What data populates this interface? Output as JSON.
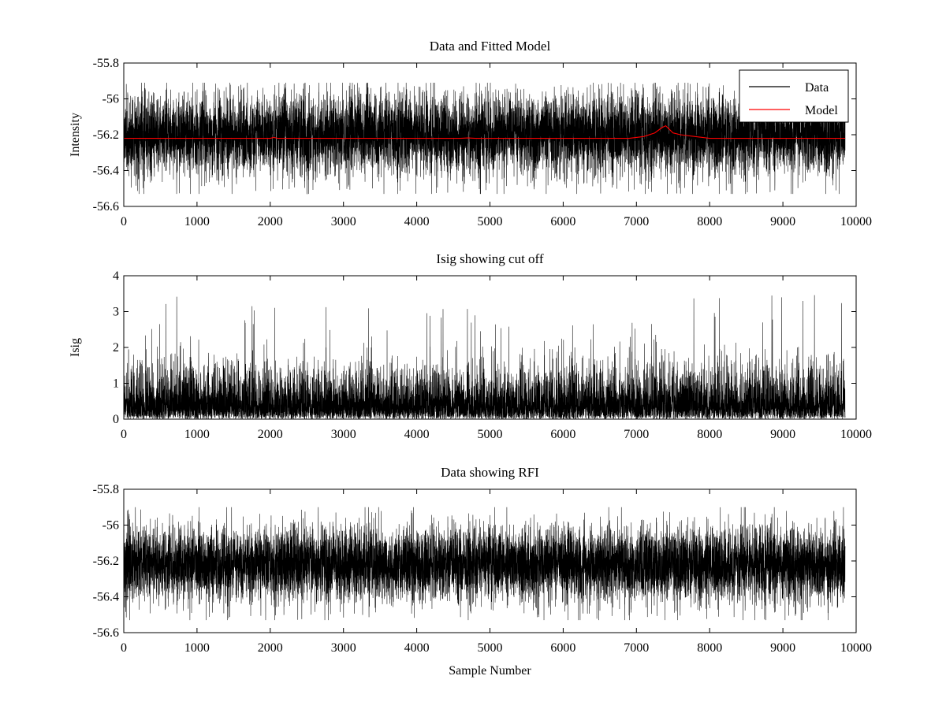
{
  "chart_data": [
    {
      "type": "line",
      "title": "Data and Fitted Model",
      "xlabel": "",
      "ylabel": "Intensity",
      "xlim": [
        0,
        10000
      ],
      "ylim": [
        -56.6,
        -55.8
      ],
      "xticks": [
        0,
        1000,
        2000,
        3000,
        4000,
        5000,
        6000,
        7000,
        8000,
        9000,
        10000
      ],
      "yticks": [
        -56.6,
        -56.4,
        -56.2,
        -56,
        -55.8
      ],
      "xtick_labels": [
        "0",
        "1000",
        "2000",
        "3000",
        "4000",
        "5000",
        "6000",
        "7000",
        "8000",
        "9000",
        "10000"
      ],
      "ytick_labels": [
        "-56.6",
        "-56.4",
        "-56.2",
        "-56",
        "-55.8"
      ],
      "grid": false,
      "legend": {
        "placement": "top-right",
        "entries": [
          {
            "name": "Data",
            "color": "#000000"
          },
          {
            "name": "Model",
            "color": "#ff0000"
          }
        ]
      },
      "series": [
        {
          "name": "Data",
          "color": "#000000",
          "kind": "noise",
          "n_points": 9850,
          "x_start": 0,
          "x_end": 9850,
          "mean": -56.2,
          "typical_range": [
            -56.35,
            -56.05
          ],
          "min": -56.53,
          "max": -55.91
        },
        {
          "name": "Model",
          "color": "#ff0000",
          "x": [
            0,
            2000,
            2050,
            2100,
            4600,
            4700,
            4800,
            6900,
            7100,
            7250,
            7350,
            7400,
            7450,
            7500,
            7600,
            7800,
            8000,
            9850
          ],
          "y": [
            -56.22,
            -56.22,
            -56.215,
            -56.22,
            -56.22,
            -56.218,
            -56.22,
            -56.22,
            -56.21,
            -56.19,
            -56.16,
            -56.15,
            -56.17,
            -56.19,
            -56.2,
            -56.21,
            -56.22,
            -56.22
          ]
        }
      ]
    },
    {
      "type": "line",
      "title": "Isig showing cut off",
      "xlabel": "",
      "ylabel": "Isig",
      "xlim": [
        0,
        10000
      ],
      "ylim": [
        0,
        4
      ],
      "xticks": [
        0,
        1000,
        2000,
        3000,
        4000,
        5000,
        6000,
        7000,
        8000,
        9000,
        10000
      ],
      "yticks": [
        0,
        1,
        2,
        3,
        4
      ],
      "xtick_labels": [
        "0",
        "1000",
        "2000",
        "3000",
        "4000",
        "5000",
        "6000",
        "7000",
        "8000",
        "9000",
        "10000"
      ],
      "ytick_labels": [
        "0",
        "1",
        "2",
        "3",
        "4"
      ],
      "grid": false,
      "series": [
        {
          "color": "#000000",
          "kind": "noise",
          "n_points": 9850,
          "x_start": 0,
          "x_end": 9850,
          "mean": 0.8,
          "typical_range": [
            0.05,
            1.7
          ],
          "min": 0.0,
          "max": 3.5
        }
      ]
    },
    {
      "type": "line",
      "title": "Data showing RFI",
      "xlabel": "Sample Number",
      "ylabel": "",
      "xlim": [
        0,
        10000
      ],
      "ylim": [
        -56.6,
        -55.8
      ],
      "xticks": [
        0,
        1000,
        2000,
        3000,
        4000,
        5000,
        6000,
        7000,
        8000,
        9000,
        10000
      ],
      "yticks": [
        -56.6,
        -56.4,
        -56.2,
        -56,
        -55.8
      ],
      "xtick_labels": [
        "0",
        "1000",
        "2000",
        "3000",
        "4000",
        "5000",
        "6000",
        "7000",
        "8000",
        "9000",
        "10000"
      ],
      "ytick_labels": [
        "-56.6",
        "-56.4",
        "-56.2",
        "-56",
        "-55.8"
      ],
      "grid": false,
      "series": [
        {
          "color": "#000000",
          "kind": "noise",
          "n_points": 9850,
          "x_start": 0,
          "x_end": 9850,
          "mean": -56.22,
          "typical_range": [
            -56.35,
            -56.08
          ],
          "min": -56.53,
          "max": -55.9
        }
      ]
    }
  ]
}
